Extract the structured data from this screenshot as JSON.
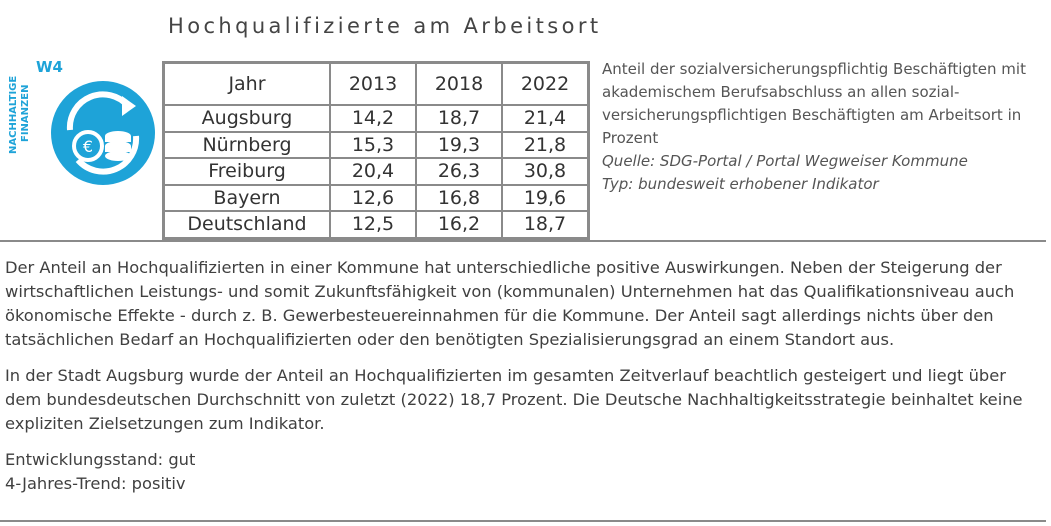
{
  "title": "Hochqualifizierte am Arbeitsort",
  "logo": {
    "tag": "W4",
    "side_line1": "NACHHALTIGE",
    "side_line2": "FINANZEN",
    "icon": "coins-cycle-icon",
    "color": "#1ea3d8"
  },
  "table": {
    "header": [
      "Jahr",
      "2013",
      "2018",
      "2022"
    ],
    "rows": [
      [
        "Augsburg",
        "14,2",
        "18,7",
        "21,4"
      ],
      [
        "Nürnberg",
        "15,3",
        "19,3",
        "21,8"
      ],
      [
        "Freiburg",
        "20,4",
        "26,3",
        "30,8"
      ],
      [
        "Bayern",
        "12,6",
        "16,8",
        "19,6"
      ],
      [
        "Deutschland",
        "12,5",
        "16,2",
        "18,7"
      ]
    ]
  },
  "description": {
    "text": "Anteil der sozialversicherungspflichtig Beschäftigten mit akademischem Berufsabschluss an allen sozial-versicherungspflichtigen Beschäftigten am Arbeitsort in Prozent",
    "source": "Quelle: SDG-Portal / Portal Wegweiser Kommune",
    "type": "Typ: bundesweit erhobener Indikator"
  },
  "paragraphs": [
    "Der Anteil an Hochqualifizierten in einer Kommune hat unterschiedliche positive Auswirkungen. Neben der Steigerung der wirtschaftlichen Leistungs- und somit Zukunftsfähigkeit von (kommunalen) Unternehmen hat das Qualifikationsniveau auch ökonomische Effekte - durch z. B. Gewerbesteuereinnahmen für die Kommune. Der Anteil sagt allerdings nichts über den tatsächlichen Bedarf an Hochqualifizierten oder den benötigten Spezialisierungsgrad an einem Standort aus.",
    "In der Stadt Augsburg wurde der Anteil an Hochqualifizierten im gesamten Zeitverlauf beachtlich gesteigert und liegt über dem bundesdeutschen Durchschnitt von zuletzt (2022) 18,7 Prozent. Die Deutsche Nachhaltigkeitsstrategie beinhaltet keine expliziten Zielsetzungen zum Indikator."
  ],
  "status": {
    "entwicklungsstand": "Entwicklungsstand: gut",
    "trend": "4-Jahres-Trend: positiv"
  }
}
